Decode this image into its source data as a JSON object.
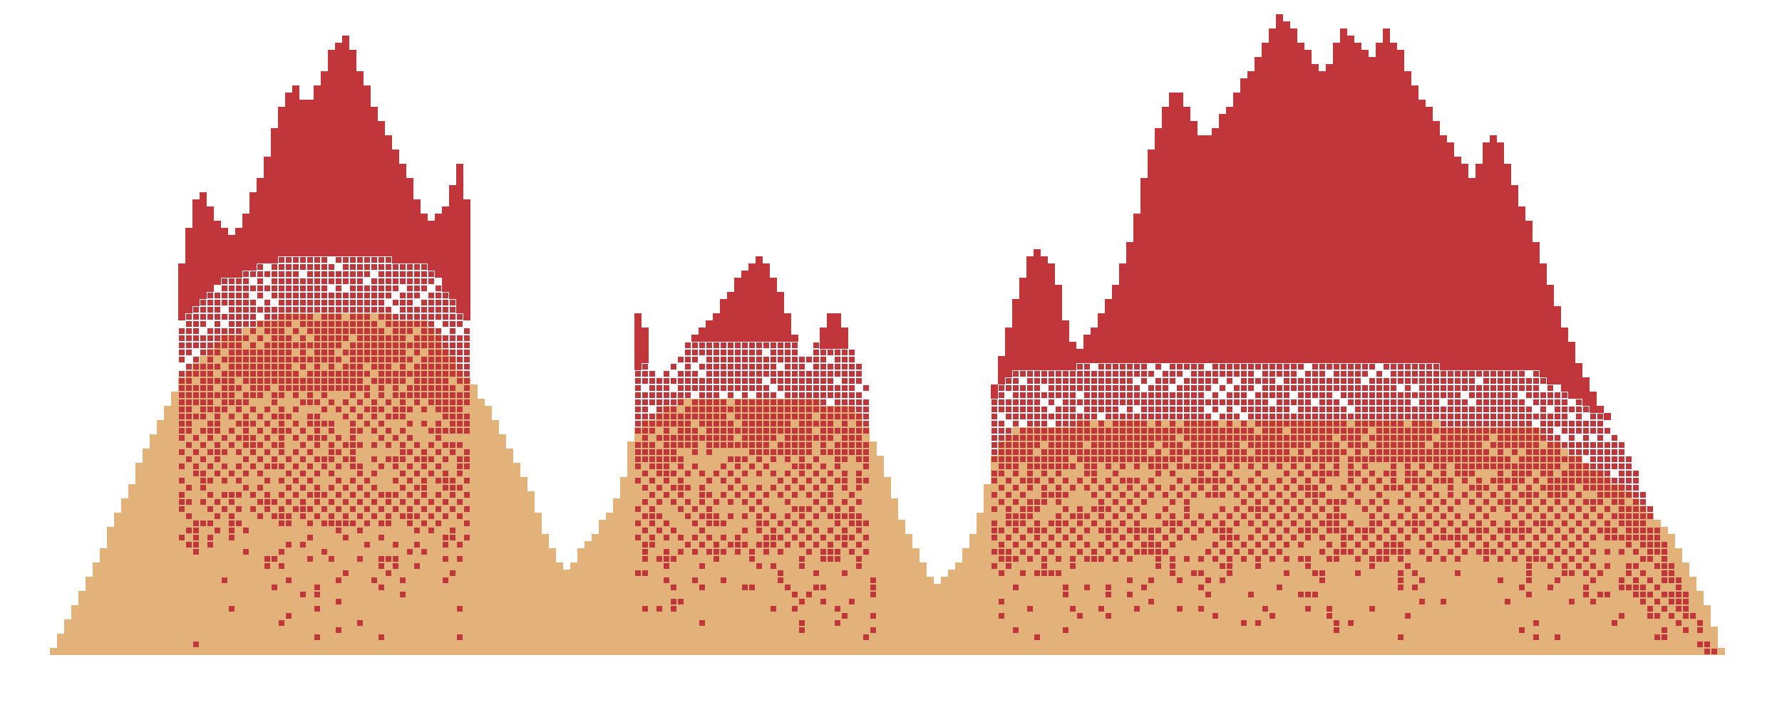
{
  "artwork": {
    "title": "",
    "colors": {
      "background": "#ffffff",
      "peak": "#c0363a",
      "sand": "#e2b27a"
    }
  }
}
